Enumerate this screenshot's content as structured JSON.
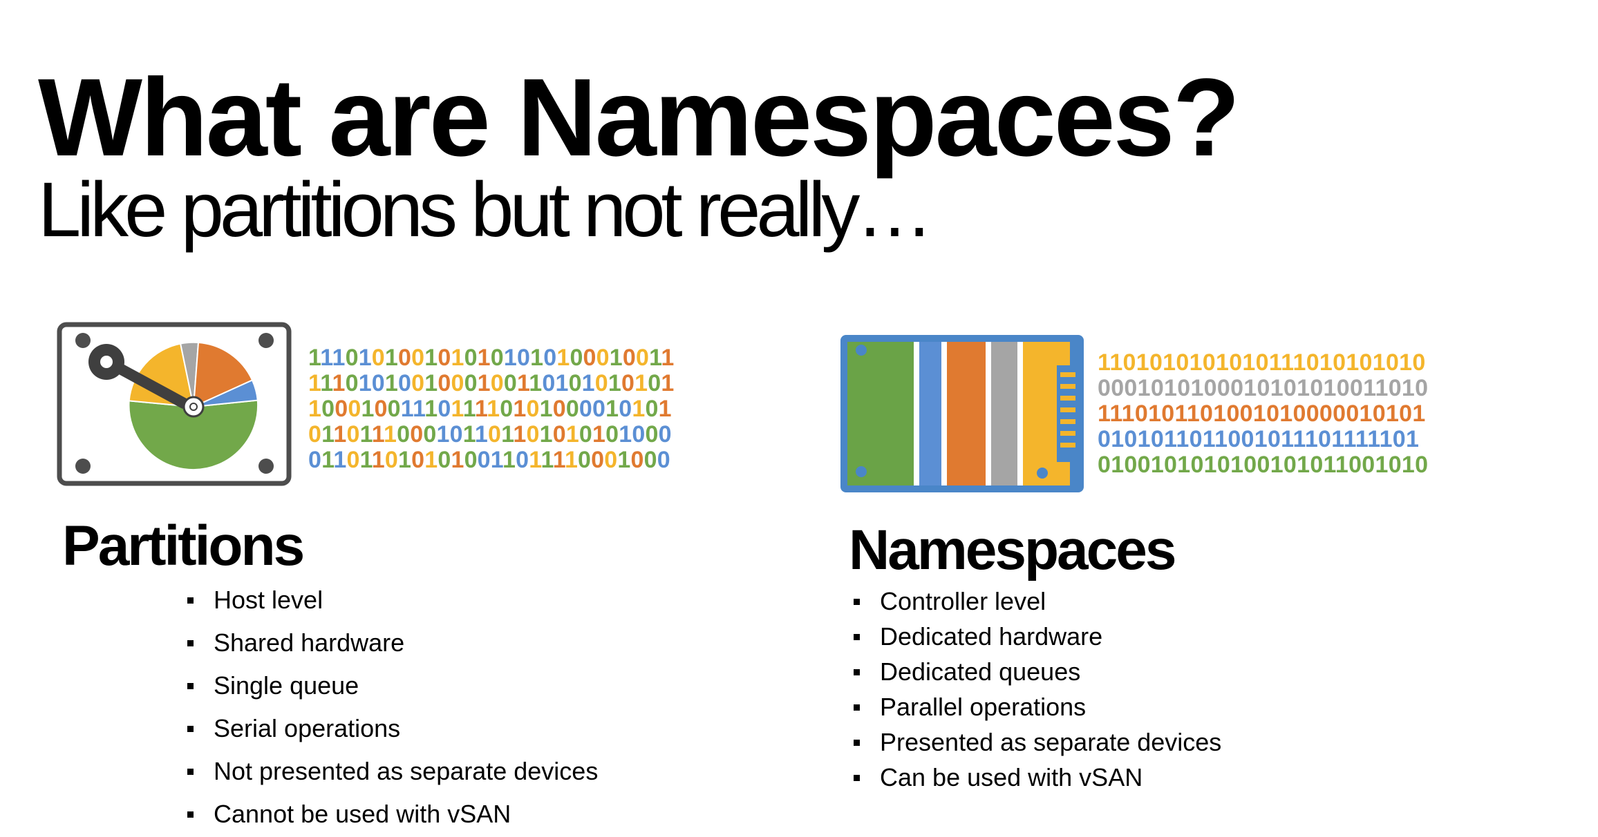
{
  "title": "What are Namespaces?",
  "subtitle": "Like partitions but not really…",
  "colors": {
    "yellow": "#f4b52c",
    "orange": "#e07a30",
    "blue": "#5b8fd4",
    "green": "#72a84a",
    "gray": "#a5a5a5"
  },
  "left": {
    "heading": "Partitions",
    "binary_rows": [
      "1110101001010101010100010011",
      "1110101001000100110101010101",
      "1000100111011110101000010101",
      "0110111000101101101010101000",
      "0110110101010011011110001000"
    ],
    "bullets": [
      "Host level",
      "Shared hardware",
      "Single queue",
      "Serial operations",
      "Not presented as separate devices",
      "Cannot be used with vSAN"
    ]
  },
  "right": {
    "heading": "Namespaces",
    "binary_rows": [
      "1101010101010111010101010",
      "0001010100010101010011010",
      "1110101101001010000010101",
      "0101011011001011101111101",
      "0100101010100101011001010"
    ],
    "bullets": [
      "Controller level",
      "Dedicated hardware",
      "Dedicated queues",
      "Parallel operations",
      "Presented as separate devices",
      "Can be used with vSAN"
    ]
  }
}
